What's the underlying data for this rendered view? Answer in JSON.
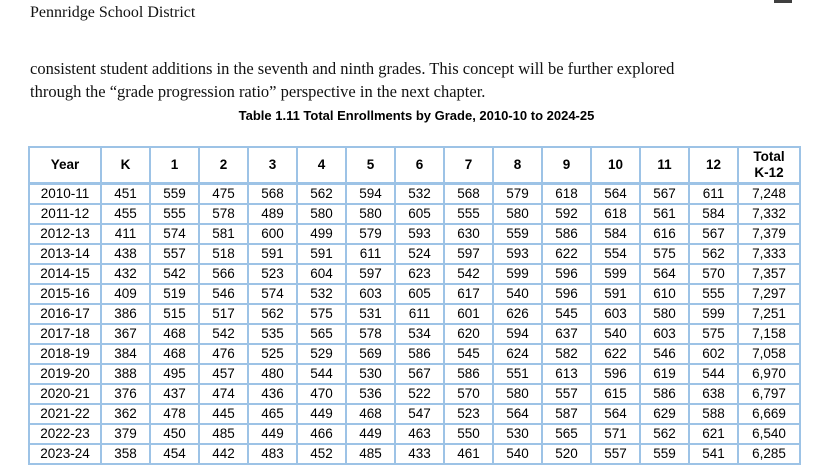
{
  "page": {
    "header": "Pennridge School District",
    "body_text": "consistent student additions in the seventh and ninth grades.  This concept will be further explored\nthrough the “grade progression ratio” perspective in the next chapter."
  },
  "table": {
    "title": "Table 1.11 Total Enrollments by Grade, 2010-10 to 2024-25",
    "columns": [
      "Year",
      "K",
      "1",
      "2",
      "3",
      "4",
      "5",
      "6",
      "7",
      "8",
      "9",
      "10",
      "11",
      "12",
      "Total\nK-12"
    ],
    "colors": {
      "border": "#9DC3E6",
      "yellow": "#FFFF00",
      "blue": "#BDD7EE",
      "salmon": "#F7C5A5"
    },
    "rows": [
      {
        "year": "2010-11",
        "values": [
          "451",
          "559",
          "475",
          "568",
          "562",
          "594",
          "532",
          "568",
          "579",
          "618",
          "564",
          "567",
          "611"
        ],
        "total": "7,248",
        "highlights": {
          "yellow": 0
        }
      },
      {
        "year": "2011-12",
        "values": [
          "455",
          "555",
          "578",
          "489",
          "580",
          "580",
          "605",
          "555",
          "580",
          "592",
          "618",
          "561",
          "584"
        ],
        "total": "7,332",
        "highlights": {
          "blue": 0,
          "yellow": 1
        }
      },
      {
        "year": "2012-13",
        "values": [
          "411",
          "574",
          "581",
          "600",
          "499",
          "579",
          "593",
          "630",
          "559",
          "586",
          "584",
          "616",
          "567"
        ],
        "total": "7,379",
        "highlights": {
          "salmon": 0,
          "blue": 1,
          "yellow": 2
        }
      },
      {
        "year": "2013-14",
        "values": [
          "438",
          "557",
          "518",
          "591",
          "591",
          "611",
          "524",
          "597",
          "593",
          "622",
          "554",
          "575",
          "562"
        ],
        "total": "7,333",
        "highlights": {
          "salmon": 1,
          "blue": 2,
          "yellow": 3
        }
      },
      {
        "year": "2014-15",
        "values": [
          "432",
          "542",
          "566",
          "523",
          "604",
          "597",
          "623",
          "542",
          "599",
          "596",
          "599",
          "564",
          "570"
        ],
        "total": "7,357",
        "highlights": {
          "salmon": 2,
          "blue": 3,
          "yellow": 4
        }
      },
      {
        "year": "2015-16",
        "values": [
          "409",
          "519",
          "546",
          "574",
          "532",
          "603",
          "605",
          "617",
          "540",
          "596",
          "591",
          "610",
          "555"
        ],
        "total": "7,297",
        "highlights": {
          "salmon": 3,
          "blue": 4,
          "yellow": 5
        }
      },
      {
        "year": "2016-17",
        "values": [
          "386",
          "515",
          "517",
          "562",
          "575",
          "531",
          "611",
          "601",
          "626",
          "545",
          "603",
          "580",
          "599"
        ],
        "total": "7,251",
        "highlights": {
          "salmon": 4,
          "blue": 5,
          "yellow": 6
        }
      },
      {
        "year": "2017-18",
        "values": [
          "367",
          "468",
          "542",
          "535",
          "565",
          "578",
          "534",
          "620",
          "594",
          "637",
          "540",
          "603",
          "575"
        ],
        "total": "7,158",
        "highlights": {
          "salmon": 5,
          "blue": 6,
          "yellow": 7
        }
      },
      {
        "year": "2018-19",
        "values": [
          "384",
          "468",
          "476",
          "525",
          "529",
          "569",
          "586",
          "545",
          "624",
          "582",
          "622",
          "546",
          "602"
        ],
        "total": "7,058",
        "highlights": {
          "salmon": 6,
          "blue": 7,
          "yellow": 8
        }
      },
      {
        "year": "2019-20",
        "values": [
          "388",
          "495",
          "457",
          "480",
          "544",
          "530",
          "567",
          "586",
          "551",
          "613",
          "596",
          "619",
          "544"
        ],
        "total": "6,970",
        "highlights": {
          "salmon": 7,
          "blue": 8,
          "yellow": 9
        }
      },
      {
        "year": "2020-21",
        "values": [
          "376",
          "437",
          "474",
          "436",
          "470",
          "536",
          "522",
          "570",
          "580",
          "557",
          "615",
          "586",
          "638"
        ],
        "total": "6,797",
        "highlights": {
          "salmon": 8,
          "blue": 9,
          "yellow": 10
        }
      },
      {
        "year": "2021-22",
        "values": [
          "362",
          "478",
          "445",
          "465",
          "449",
          "468",
          "547",
          "523",
          "564",
          "587",
          "564",
          "629",
          "588"
        ],
        "total": "6,669",
        "highlights": {
          "salmon": 9,
          "blue": 10,
          "yellow": 11
        }
      },
      {
        "year": "2022-23",
        "values": [
          "379",
          "450",
          "485",
          "449",
          "466",
          "449",
          "463",
          "550",
          "530",
          "565",
          "571",
          "562",
          "621"
        ],
        "total": "6,540",
        "highlights": {
          "salmon": 10,
          "blue": 11,
          "yellow": 12
        }
      },
      {
        "year": "2023-24",
        "values": [
          "358",
          "454",
          "442",
          "483",
          "452",
          "485",
          "433",
          "461",
          "540",
          "520",
          "557",
          "559",
          "541"
        ],
        "total": "6,285",
        "highlights": {
          "salmon": 11,
          "blue": 12
        }
      }
    ]
  }
}
